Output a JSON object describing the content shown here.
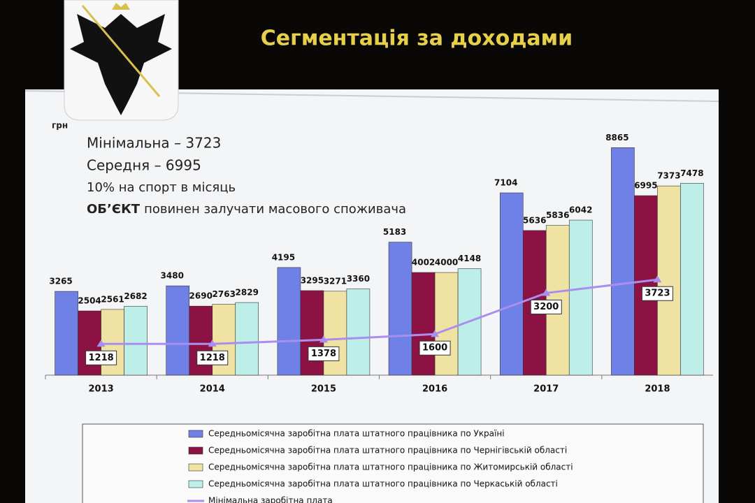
{
  "chart_data": {
    "type": "bar",
    "title": "Сегментація за доходами",
    "y_label": "грн",
    "annotations": [
      "Мінімальна – 3723",
      "Середня – 6995",
      "10% на спорт в місяць"
    ],
    "annotation_emphasis": {
      "bold": "ОБ’ЄКТ",
      "text": "повинен залучати масового споживача"
    },
    "categories": [
      "2013",
      "2014",
      "2015",
      "2016",
      "2017",
      "2018"
    ],
    "ylim": [
      0,
      9500
    ],
    "series": [
      {
        "name": "Середньомісячна заробітна плата штатного працівника по Україні",
        "color": "#6f80e6",
        "values": [
          3265,
          3480,
          4195,
          5183,
          7104,
          8865
        ]
      },
      {
        "name": "Середньомісячна заробітна плата штатного працівника по Чернігівській області",
        "color": "#8c1243",
        "values": [
          2504,
          2690,
          3295,
          4002,
          5636,
          6995
        ]
      },
      {
        "name": "Середньомісячна заробітна плата штатного працівника по Житомирській області",
        "color": "#f0e2a2",
        "values": [
          2561,
          2763,
          3271,
          4000,
          5836,
          7373
        ]
      },
      {
        "name": "Середньомісячна заробітна плата штатного працівника по Черкаській області",
        "color": "#bdeee8",
        "values": [
          2682,
          2829,
          3360,
          4148,
          6042,
          7478
        ]
      },
      {
        "name": "Мінімальна заробітна плата",
        "color": "#a98ef0",
        "type": "line",
        "values": [
          1218,
          1218,
          1378,
          1600,
          3200,
          3723
        ]
      }
    ]
  }
}
